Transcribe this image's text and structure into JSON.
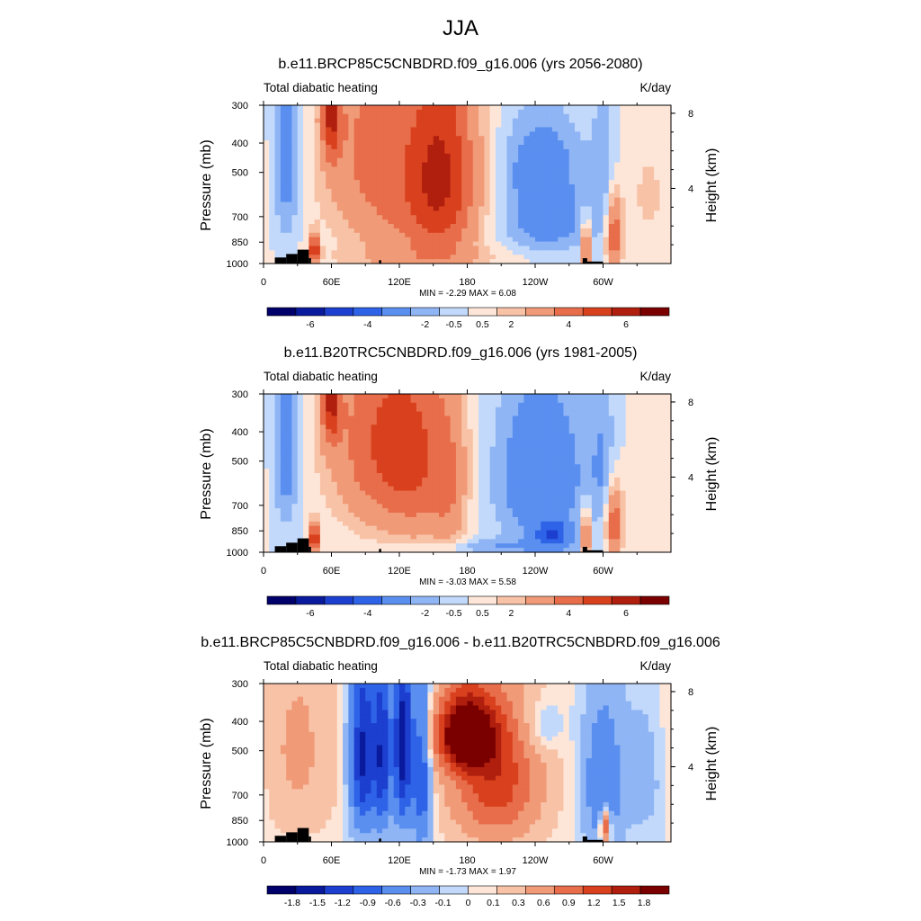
{
  "season_title": "JJA",
  "colors": {
    "full_levels": [
      "#00006b",
      "#0a1a9c",
      "#1c3fcf",
      "#2e63e8",
      "#5a8ff0",
      "#8fb5f5",
      "#c2d9fb",
      "#fde6d8",
      "#f8c2a6",
      "#f09a77",
      "#e86d4a",
      "#d9411e",
      "#b01e0e",
      "#7a0000"
    ]
  },
  "panels": [
    {
      "title": "b.e11.BRCP85C5CNBDRD.f09_g16.006 (yrs 2056-2080)",
      "left_string": "Total diabatic heating",
      "right_string": "K/day",
      "y_label": "Pressure (mb)",
      "y2_label": "Height (km)",
      "minmax": "MIN =  -2.29  MAX =   6.08",
      "legend_labels": [
        "-6",
        "-4",
        "-2",
        "-0.5",
        "0.5",
        "2",
        "4",
        "6"
      ]
    },
    {
      "title": "b.e11.B20TRC5CNBDRD.f09_g16.006 (yrs 1981-2005)",
      "left_string": "Total diabatic heating",
      "right_string": "K/day",
      "y_label": "Pressure (mb)",
      "y2_label": "Height (km)",
      "minmax": "MIN =  -3.03  MAX =   5.58",
      "legend_labels": [
        "-6",
        "-4",
        "-2",
        "-0.5",
        "0.5",
        "2",
        "4",
        "6"
      ]
    },
    {
      "title": "b.e11.BRCP85C5CNBDRD.f09_g16.006 - b.e11.B20TRC5CNBDRD.f09_g16.006",
      "left_string": "Total diabatic heating",
      "right_string": "K/day",
      "y_label": "Pressure (mb)",
      "y2_label": "Height (km)",
      "minmax": "MIN =  -1.73  MAX =   1.97",
      "legend_labels": [
        "-1.8",
        "-1.5",
        "-1.2",
        "-0.9",
        "-0.6",
        "-0.3",
        "-0.1",
        "0",
        "0.1",
        "0.3",
        "0.6",
        "0.9",
        "1.2",
        "1.5",
        "1.8"
      ]
    }
  ],
  "chart_data": [
    {
      "type": "heatmap",
      "title": "b.e11.BRCP85C5CNBDRD.f09_g16.006 (yrs 2056-2080)",
      "xlabel": "",
      "ylabel": "Pressure (mb)",
      "y2label": "Height (km)",
      "x_ticks": [
        "0",
        "60E",
        "120E",
        "180",
        "120W",
        "60W"
      ],
      "x_tick_values": [
        0,
        60,
        120,
        180,
        240,
        300
      ],
      "xlim": [
        0,
        360
      ],
      "y_ticks": [
        "300",
        "400",
        "500",
        "700",
        "850",
        "1000"
      ],
      "y_tick_values": [
        300,
        400,
        500,
        700,
        850,
        1000
      ],
      "ylim": [
        1000,
        300
      ],
      "y2_ticks": [
        "8",
        "4"
      ],
      "y2_tick_values": [
        8,
        4
      ],
      "units": "K/day",
      "levels": [
        -7,
        -6,
        -5,
        -4,
        -3,
        -2,
        -1,
        -0.5,
        0,
        0.5,
        1,
        2,
        3,
        4,
        5,
        6,
        7
      ],
      "features": [
        {
          "lon": 60,
          "p": 320,
          "sx": 6,
          "sp": 90,
          "v": 3.5
        },
        {
          "lon": 45,
          "p": 900,
          "sx": 3,
          "sp": 70,
          "v": 4.5
        },
        {
          "lon": 95,
          "p": 380,
          "sx": 30,
          "sp": 250,
          "v": 2.0
        },
        {
          "lon": 158,
          "p": 480,
          "sx": 22,
          "sp": 300,
          "v": 3.5
        },
        {
          "lon": 130,
          "p": 700,
          "sx": 40,
          "sp": 250,
          "v": 1.2
        },
        {
          "lon": 140,
          "p": 960,
          "sx": 60,
          "sp": 60,
          "v": 0.6
        },
        {
          "lon": 20,
          "p": 450,
          "sx": 8,
          "sp": 250,
          "v": -1.5
        },
        {
          "lon": 245,
          "p": 480,
          "sx": 25,
          "sp": 130,
          "v": -1.6
        },
        {
          "lon": 250,
          "p": 750,
          "sx": 30,
          "sp": 120,
          "v": -1.3
        },
        {
          "lon": 285,
          "p": 880,
          "sx": 2,
          "sp": 120,
          "v": 4.0
        },
        {
          "lon": 310,
          "p": 800,
          "sx": 5,
          "sp": 150,
          "v": 3.0
        },
        {
          "lon": 300,
          "p": 500,
          "sx": 8,
          "sp": 200,
          "v": -0.8
        },
        {
          "lon": 340,
          "p": 600,
          "sx": 15,
          "sp": 200,
          "v": 0.6
        }
      ],
      "min": -2.29,
      "max": 6.08
    },
    {
      "type": "heatmap",
      "title": "b.e11.B20TRC5CNBDRD.f09_g16.006 (yrs 1981-2005)",
      "xlabel": "",
      "ylabel": "Pressure (mb)",
      "y2label": "Height (km)",
      "x_ticks": [
        "0",
        "60E",
        "120E",
        "180",
        "120W",
        "60W"
      ],
      "x_tick_values": [
        0,
        60,
        120,
        180,
        240,
        300
      ],
      "xlim": [
        0,
        360
      ],
      "y_ticks": [
        "300",
        "400",
        "500",
        "700",
        "850",
        "1000"
      ],
      "y_tick_values": [
        300,
        400,
        500,
        700,
        850,
        1000
      ],
      "ylim": [
        1000,
        300
      ],
      "y2_ticks": [
        "8",
        "4"
      ],
      "y2_tick_values": [
        8,
        4
      ],
      "units": "K/day",
      "levels": [
        -7,
        -6,
        -5,
        -4,
        -3,
        -2,
        -1,
        -0.5,
        0,
        0.5,
        1,
        2,
        3,
        4,
        5,
        6,
        7
      ],
      "features": [
        {
          "lon": 60,
          "p": 320,
          "sx": 6,
          "sp": 80,
          "v": 3.5
        },
        {
          "lon": 45,
          "p": 900,
          "sx": 3,
          "sp": 70,
          "v": 4.5
        },
        {
          "lon": 100,
          "p": 430,
          "sx": 30,
          "sp": 250,
          "v": 2.6
        },
        {
          "lon": 140,
          "p": 500,
          "sx": 25,
          "sp": 280,
          "v": 2.2
        },
        {
          "lon": 165,
          "p": 650,
          "sx": 10,
          "sp": 250,
          "v": 1.0
        },
        {
          "lon": 20,
          "p": 450,
          "sx": 8,
          "sp": 250,
          "v": -1.5
        },
        {
          "lon": 245,
          "p": 560,
          "sx": 30,
          "sp": 260,
          "v": -1.8
        },
        {
          "lon": 255,
          "p": 870,
          "sx": 10,
          "sp": 60,
          "v": -2.5
        },
        {
          "lon": 285,
          "p": 880,
          "sx": 2,
          "sp": 120,
          "v": 4.0
        },
        {
          "lon": 310,
          "p": 800,
          "sx": 5,
          "sp": 150,
          "v": 3.0
        },
        {
          "lon": 300,
          "p": 500,
          "sx": 8,
          "sp": 200,
          "v": -0.8
        },
        {
          "lon": 340,
          "p": 600,
          "sx": 15,
          "sp": 200,
          "v": 0.4
        },
        {
          "lon": 200,
          "p": 960,
          "sx": 50,
          "sp": 40,
          "v": -0.8
        }
      ],
      "min": -3.03,
      "max": 5.58
    },
    {
      "type": "heatmap",
      "title": "b.e11.BRCP85C5CNBDRD.f09_g16.006 - b.e11.B20TRC5CNBDRD.f09_g16.006",
      "xlabel": "",
      "ylabel": "Pressure (mb)",
      "y2label": "Height (km)",
      "x_ticks": [
        "0",
        "60E",
        "120E",
        "180",
        "120W",
        "60W"
      ],
      "x_tick_values": [
        0,
        60,
        120,
        180,
        240,
        300
      ],
      "xlim": [
        0,
        360
      ],
      "y_ticks": [
        "300",
        "400",
        "500",
        "700",
        "850",
        "1000"
      ],
      "y_tick_values": [
        300,
        400,
        500,
        700,
        850,
        1000
      ],
      "ylim": [
        1000,
        300
      ],
      "y2_ticks": [
        "8",
        "4"
      ],
      "y2_tick_values": [
        8,
        4
      ],
      "units": "K/day",
      "levels": [
        -1.95,
        -1.8,
        -1.5,
        -1.2,
        -0.9,
        -0.6,
        -0.3,
        -0.1,
        0,
        0.1,
        0.3,
        0.6,
        0.9,
        1.2,
        1.5,
        1.8,
        1.95
      ],
      "features": [
        {
          "lon": 88,
          "p": 520,
          "sx": 8,
          "sp": 250,
          "v": -1.3
        },
        {
          "lon": 105,
          "p": 520,
          "sx": 5,
          "sp": 250,
          "v": -1.1
        },
        {
          "lon": 123,
          "p": 480,
          "sx": 6,
          "sp": 250,
          "v": -1.4
        },
        {
          "lon": 140,
          "p": 600,
          "sx": 6,
          "sp": 280,
          "v": -0.9
        },
        {
          "lon": 178,
          "p": 440,
          "sx": 18,
          "sp": 90,
          "v": 1.9
        },
        {
          "lon": 205,
          "p": 620,
          "sx": 28,
          "sp": 240,
          "v": 1.1
        },
        {
          "lon": 245,
          "p": 420,
          "sx": 12,
          "sp": 60,
          "v": -0.3
        },
        {
          "lon": 300,
          "p": 650,
          "sx": 12,
          "sp": 250,
          "v": -0.6
        },
        {
          "lon": 302,
          "p": 890,
          "sx": 3,
          "sp": 80,
          "v": 1.2
        },
        {
          "lon": 30,
          "p": 500,
          "sx": 25,
          "sp": 300,
          "v": 0.35
        },
        {
          "lon": 340,
          "p": 600,
          "sx": 15,
          "sp": 250,
          "v": -0.2
        }
      ],
      "min": -1.73,
      "max": 1.97
    }
  ]
}
